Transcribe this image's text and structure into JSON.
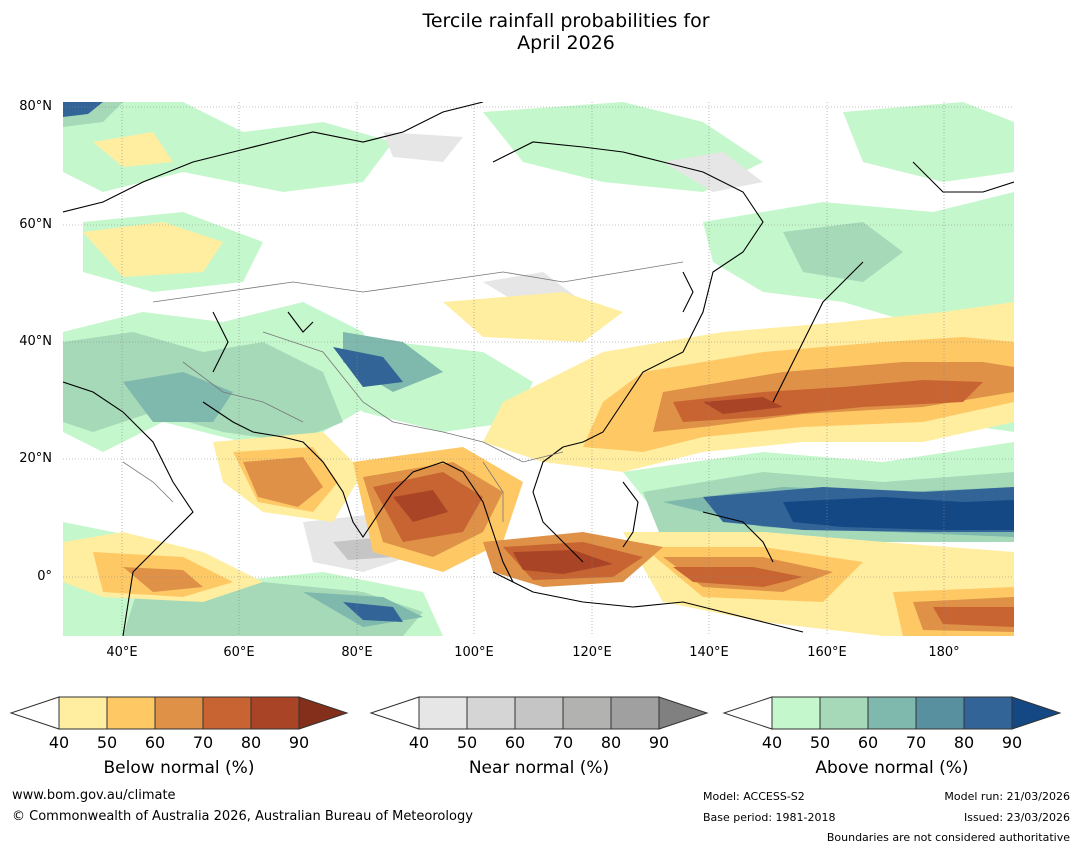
{
  "title": {
    "line1": "Tercile rainfall probabilities for",
    "line2": "April 2026"
  },
  "axes": {
    "lat_labels": [
      "80°N",
      "60°N",
      "40°N",
      "20°N",
      "0°"
    ],
    "lon_labels": [
      "40°E",
      "60°E",
      "80°E",
      "100°E",
      "120°E",
      "140°E",
      "160°E",
      "180°"
    ]
  },
  "colorbars": [
    {
      "title": "Below normal (%)",
      "ticks": [
        "40",
        "50",
        "60",
        "70",
        "80",
        "90"
      ],
      "colors": [
        "#ffeda0",
        "#fec965",
        "#de9147",
        "#c86431",
        "#a94427",
        "#842f1b"
      ]
    },
    {
      "title": "Near normal (%)",
      "ticks": [
        "40",
        "50",
        "60",
        "70",
        "80",
        "90"
      ],
      "colors": [
        "#e6e6e6",
        "#d5d5d5",
        "#c5c5c5",
        "#b2b3b1",
        "#a0a0a0",
        "#808080"
      ]
    },
    {
      "title": "Above normal (%)",
      "ticks": [
        "40",
        "50",
        "60",
        "70",
        "80",
        "90"
      ],
      "colors": [
        "#c5f7cc",
        "#a5d9b8",
        "#7fb8ac",
        "#5890a0",
        "#336497",
        "#134885"
      ]
    }
  ],
  "footer": {
    "website": "www.bom.gov.au/climate",
    "copyright": "© Commonwealth of Australia 2026, Australian Bureau of Meteorology",
    "model": "Model: ACCESS-S2",
    "base_period": "Base period: 1981-2018",
    "model_run": "Model run: 21/03/2026",
    "issued": "Issued: 23/03/2026",
    "disclaimer": "Boundaries are not considered authoritative"
  }
}
